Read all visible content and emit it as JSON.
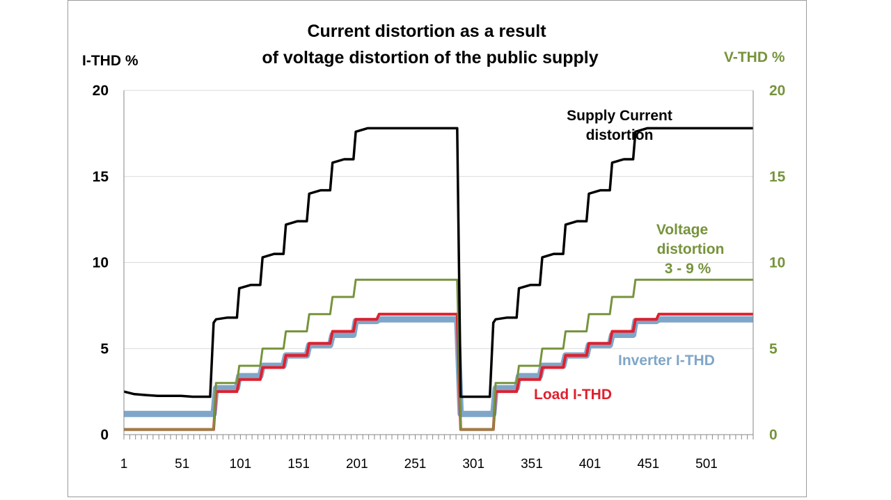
{
  "chart_data": {
    "type": "line",
    "title": "Current distortion as a result of voltage distortion of the public supply",
    "title_lines": [
      "Current distortion as a result",
      "of voltage distortion of the public supply"
    ],
    "ylabel": "I-THD %",
    "y2label": "V-THD %",
    "xlim": [
      1,
      541
    ],
    "ylim": [
      0,
      20
    ],
    "y2lim": [
      0,
      20
    ],
    "x_ticks": [
      "1",
      "51",
      "101",
      "151",
      "201",
      "251",
      "301",
      "351",
      "401",
      "451",
      "501"
    ],
    "x_tick_values": [
      1,
      51,
      101,
      151,
      201,
      251,
      301,
      351,
      401,
      451,
      501
    ],
    "y_ticks": [
      "0",
      "5",
      "10",
      "15",
      "20"
    ],
    "y_tick_values": [
      0,
      5,
      10,
      15,
      20
    ],
    "y2_ticks": [
      "0",
      "5",
      "10",
      "15",
      "20"
    ],
    "y2_tick_values": [
      0,
      5,
      10,
      15,
      20
    ],
    "grid": true,
    "colors": {
      "supply": "#000000",
      "voltage": "#77933c",
      "inverter": "#7fa6c8",
      "load": "#e0202e",
      "grid": "#d9d9d9",
      "axis": "#868686",
      "title": "#000000",
      "y2label": "#77933c"
    },
    "series": [
      {
        "name": "Supply Current distortion",
        "label_lines": [
          "Supply Current",
          "distortion"
        ],
        "axis": "left",
        "x": [
          1,
          10,
          20,
          30,
          40,
          50,
          60,
          70,
          75,
          78,
          80,
          90,
          98,
          100,
          110,
          118,
          120,
          130,
          138,
          140,
          150,
          158,
          160,
          170,
          178,
          180,
          190,
          198,
          200,
          210,
          218,
          220,
          230,
          240,
          250,
          260,
          270,
          280,
          287,
          290,
          300,
          310,
          315,
          318,
          320,
          330,
          338,
          340,
          350,
          358,
          360,
          370,
          378,
          380,
          390,
          398,
          400,
          410,
          418,
          420,
          430,
          438,
          440,
          450,
          458,
          460,
          470,
          480,
          490,
          500,
          510,
          520,
          530,
          541
        ],
        "values": [
          2.5,
          2.35,
          2.3,
          2.25,
          2.25,
          2.25,
          2.2,
          2.2,
          2.2,
          6.5,
          6.7,
          6.8,
          6.8,
          8.5,
          8.7,
          8.7,
          10.3,
          10.5,
          10.5,
          12.2,
          12.4,
          12.4,
          14.0,
          14.2,
          14.2,
          15.8,
          16.0,
          16.0,
          17.6,
          17.8,
          17.8,
          17.8,
          17.8,
          17.8,
          17.8,
          17.8,
          17.8,
          17.8,
          17.8,
          2.2,
          2.2,
          2.2,
          2.2,
          6.5,
          6.7,
          6.8,
          6.8,
          8.5,
          8.7,
          8.7,
          10.3,
          10.5,
          10.5,
          12.2,
          12.4,
          12.4,
          14.0,
          14.2,
          14.2,
          15.8,
          16.0,
          16.0,
          17.6,
          17.8,
          17.8,
          17.8,
          17.8,
          17.8,
          17.8,
          17.8,
          17.8,
          17.8,
          17.8,
          17.8
        ]
      },
      {
        "name": "Voltage distortion 3 - 9 %",
        "label_lines": [
          "Voltage",
          "distortion",
          "3 - 9 %"
        ],
        "axis": "right",
        "x": [
          1,
          78,
          80,
          98,
          100,
          118,
          120,
          138,
          140,
          158,
          160,
          178,
          180,
          198,
          200,
          218,
          220,
          287,
          290,
          318,
          320,
          338,
          340,
          358,
          360,
          378,
          380,
          398,
          400,
          418,
          420,
          438,
          440,
          458,
          460,
          541
        ],
        "values": [
          0.3,
          0.3,
          3.0,
          3.0,
          4.0,
          4.0,
          5.0,
          5.0,
          6.0,
          6.0,
          7.0,
          7.0,
          8.0,
          8.0,
          9.0,
          9.0,
          9.0,
          9.0,
          0.3,
          0.3,
          3.0,
          3.0,
          4.0,
          4.0,
          5.0,
          5.0,
          6.0,
          6.0,
          7.0,
          7.0,
          8.0,
          8.0,
          9.0,
          9.0,
          9.0,
          9.0
        ]
      },
      {
        "name": "Inverter I-THD",
        "axis": "left",
        "x": [
          1,
          78,
          80,
          98,
          100,
          118,
          120,
          138,
          140,
          158,
          160,
          178,
          180,
          198,
          200,
          218,
          220,
          287,
          290,
          318,
          320,
          338,
          340,
          358,
          360,
          378,
          380,
          398,
          400,
          418,
          420,
          438,
          440,
          458,
          460,
          541
        ],
        "values": [
          1.2,
          1.2,
          2.7,
          2.7,
          3.4,
          3.4,
          4.0,
          4.0,
          4.6,
          4.6,
          5.2,
          5.2,
          5.8,
          5.8,
          6.6,
          6.6,
          6.7,
          6.7,
          1.2,
          1.2,
          2.7,
          2.7,
          3.4,
          3.4,
          4.0,
          4.0,
          4.6,
          4.6,
          5.2,
          5.2,
          5.8,
          5.8,
          6.6,
          6.6,
          6.7,
          6.7
        ]
      },
      {
        "name": "Load I-THD",
        "axis": "left",
        "x": [
          1,
          78,
          80,
          98,
          100,
          118,
          120,
          138,
          140,
          158,
          160,
          178,
          180,
          198,
          200,
          218,
          220,
          287,
          290,
          318,
          320,
          338,
          340,
          358,
          360,
          378,
          380,
          398,
          400,
          418,
          420,
          438,
          440,
          458,
          460,
          541
        ],
        "values": [
          0.3,
          0.3,
          2.5,
          2.5,
          3.2,
          3.2,
          3.9,
          3.9,
          4.6,
          4.6,
          5.3,
          5.3,
          6.0,
          6.0,
          6.7,
          6.7,
          7.0,
          7.0,
          0.3,
          0.3,
          2.5,
          2.5,
          3.2,
          3.2,
          3.9,
          3.9,
          4.6,
          4.6,
          5.3,
          5.3,
          6.0,
          6.0,
          6.7,
          6.7,
          7.0,
          7.0
        ]
      }
    ]
  }
}
